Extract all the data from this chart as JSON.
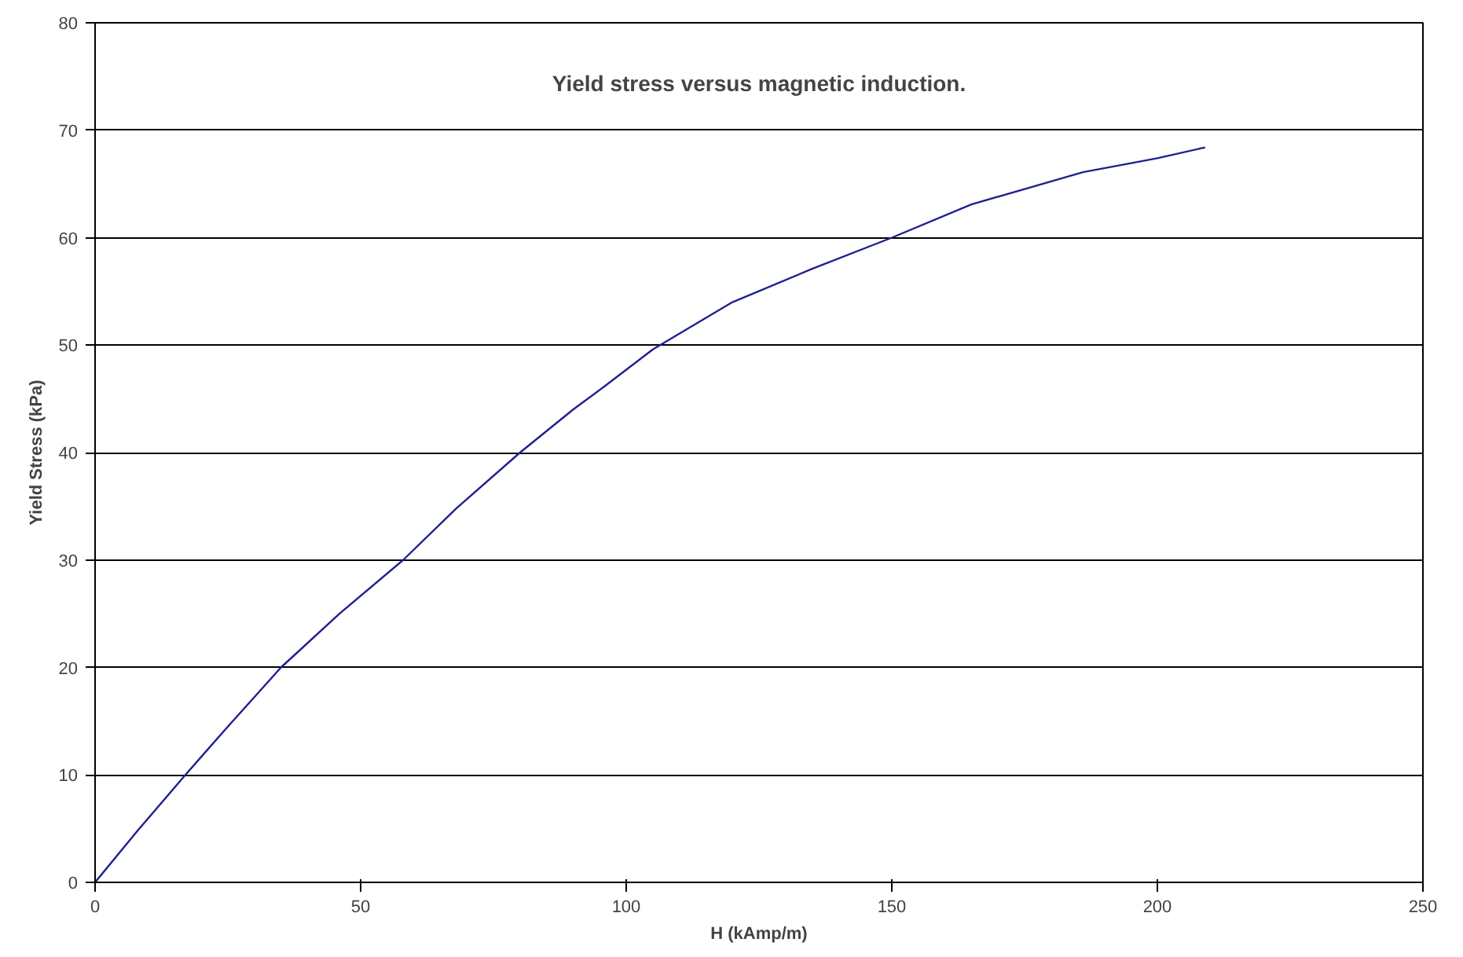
{
  "chart_data": {
    "type": "line",
    "title": "Yield stress versus magnetic induction.",
    "xlabel": "H (kAmp/m)",
    "ylabel": "Yield Stress (kPa)",
    "x": [
      0,
      8,
      17,
      25,
      35,
      46,
      58,
      68,
      80,
      90,
      96,
      105,
      120,
      135,
      150,
      165,
      186,
      200,
      209
    ],
    "series": [
      {
        "color": "#1f1f8f",
        "values": [
          0,
          4.8,
          10,
          14.5,
          20,
          25,
          30,
          34.8,
          40,
          44,
          46.2,
          49.6,
          54,
          57.1,
          60,
          63.1,
          66.1,
          67.4,
          68.4
        ]
      }
    ],
    "xlim": [
      0,
      250
    ],
    "xticks": [
      0,
      50,
      100,
      150,
      200,
      250
    ],
    "ylim": [
      0,
      80
    ],
    "yticks": [
      0,
      10,
      20,
      30,
      40,
      50,
      60,
      70,
      80
    ],
    "grid": "y",
    "marker": "none",
    "line_style": "solid"
  }
}
